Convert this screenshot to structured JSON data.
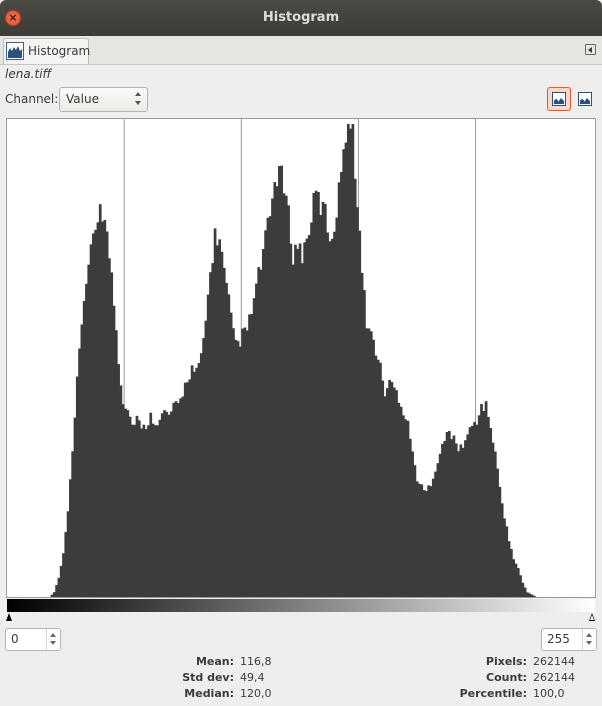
{
  "window": {
    "title": "Histogram"
  },
  "tab": {
    "label": "Histogram"
  },
  "image": {
    "filename": "lena.tiff"
  },
  "channel": {
    "label": "Channel:",
    "value": "Value"
  },
  "range": {
    "low": "0",
    "high": "255"
  },
  "stats": {
    "mean_label": "Mean:",
    "mean": "116,8",
    "stddev_label": "Std dev:",
    "stddev": "49,4",
    "median_label": "Median:",
    "median": "120,0",
    "pixels_label": "Pixels:",
    "pixels": "262144",
    "count_label": "Count:",
    "count": "262144",
    "percentile_label": "Percentile:",
    "percentile": "100,0"
  },
  "colors": {
    "bar": "#3c3c3c",
    "accent": "#e9572a"
  },
  "chart_data": {
    "type": "area",
    "x_range": [
      0,
      255
    ],
    "gridlines_x": [
      51,
      102,
      153,
      204
    ],
    "keypoints": [
      [
        0,
        0
      ],
      [
        18,
        0
      ],
      [
        20,
        0.01
      ],
      [
        22,
        0.04
      ],
      [
        24,
        0.09
      ],
      [
        26,
        0.18
      ],
      [
        28,
        0.3
      ],
      [
        30,
        0.45
      ],
      [
        32,
        0.58
      ],
      [
        34,
        0.67
      ],
      [
        36,
        0.72
      ],
      [
        38,
        0.77
      ],
      [
        40,
        0.83
      ],
      [
        42,
        0.79
      ],
      [
        44,
        0.72
      ],
      [
        46,
        0.62
      ],
      [
        48,
        0.5
      ],
      [
        50,
        0.41
      ],
      [
        52,
        0.4
      ],
      [
        54,
        0.36
      ],
      [
        56,
        0.38
      ],
      [
        58,
        0.35
      ],
      [
        60,
        0.36
      ],
      [
        62,
        0.38
      ],
      [
        64,
        0.37
      ],
      [
        66,
        0.37
      ],
      [
        68,
        0.39
      ],
      [
        70,
        0.38
      ],
      [
        72,
        0.4
      ],
      [
        74,
        0.4
      ],
      [
        76,
        0.43
      ],
      [
        78,
        0.46
      ],
      [
        80,
        0.48
      ],
      [
        82,
        0.47
      ],
      [
        84,
        0.5
      ],
      [
        86,
        0.58
      ],
      [
        88,
        0.68
      ],
      [
        90,
        0.76
      ],
      [
        92,
        0.75
      ],
      [
        94,
        0.68
      ],
      [
        96,
        0.62
      ],
      [
        98,
        0.55
      ],
      [
        100,
        0.53
      ],
      [
        102,
        0.55
      ],
      [
        104,
        0.56
      ],
      [
        106,
        0.6
      ],
      [
        108,
        0.65
      ],
      [
        110,
        0.7
      ],
      [
        112,
        0.75
      ],
      [
        114,
        0.8
      ],
      [
        116,
        0.87
      ],
      [
        118,
        0.9
      ],
      [
        120,
        0.86
      ],
      [
        122,
        0.8
      ],
      [
        124,
        0.72
      ],
      [
        126,
        0.74
      ],
      [
        128,
        0.72
      ],
      [
        130,
        0.75
      ],
      [
        132,
        0.8
      ],
      [
        134,
        0.85
      ],
      [
        136,
        0.82
      ],
      [
        138,
        0.81
      ],
      [
        140,
        0.75
      ],
      [
        142,
        0.78
      ],
      [
        144,
        0.85
      ],
      [
        146,
        0.96
      ],
      [
        148,
        1.0
      ],
      [
        150,
        0.97
      ],
      [
        152,
        0.84
      ],
      [
        154,
        0.68
      ],
      [
        156,
        0.58
      ],
      [
        158,
        0.55
      ],
      [
        160,
        0.52
      ],
      [
        162,
        0.48
      ],
      [
        164,
        0.43
      ],
      [
        166,
        0.45
      ],
      [
        168,
        0.44
      ],
      [
        170,
        0.42
      ],
      [
        172,
        0.39
      ],
      [
        174,
        0.37
      ],
      [
        176,
        0.3
      ],
      [
        178,
        0.25
      ],
      [
        180,
        0.23
      ],
      [
        182,
        0.22
      ],
      [
        184,
        0.24
      ],
      [
        186,
        0.27
      ],
      [
        188,
        0.3
      ],
      [
        190,
        0.33
      ],
      [
        192,
        0.35
      ],
      [
        194,
        0.33
      ],
      [
        196,
        0.31
      ],
      [
        198,
        0.32
      ],
      [
        200,
        0.34
      ],
      [
        202,
        0.36
      ],
      [
        204,
        0.37
      ],
      [
        206,
        0.4
      ],
      [
        208,
        0.4
      ],
      [
        210,
        0.36
      ],
      [
        212,
        0.3
      ],
      [
        214,
        0.23
      ],
      [
        216,
        0.17
      ],
      [
        218,
        0.12
      ],
      [
        220,
        0.08
      ],
      [
        222,
        0.06
      ],
      [
        224,
        0.03
      ],
      [
        226,
        0.01
      ],
      [
        228,
        0.005
      ],
      [
        230,
        0
      ],
      [
        255,
        0
      ]
    ]
  }
}
